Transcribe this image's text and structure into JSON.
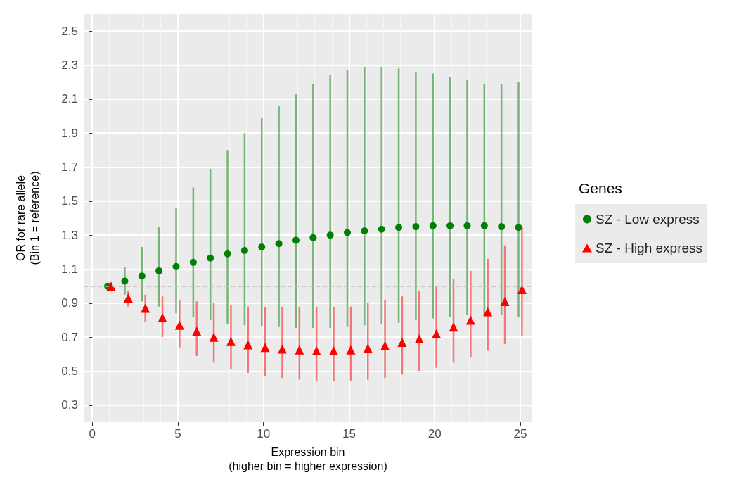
{
  "chart_data": {
    "type": "scatter",
    "xlabel": "Expression bin\n(higher bin = higher expression)",
    "ylabel": "OR for rare allele\n(Bin 1 = reference)",
    "legend_title": "Genes",
    "legend": "right",
    "grid": true,
    "xlim": [
      -0.5,
      25.7
    ],
    "xticks": [
      0,
      5,
      10,
      15,
      20,
      25
    ],
    "ylim": [
      0.2,
      2.6
    ],
    "yticks": [
      0.3,
      0.5,
      0.7,
      0.9,
      1.1,
      1.3,
      1.5,
      1.7,
      1.9,
      2.1,
      2.3,
      2.5
    ],
    "ref_lines": [
      {
        "axis": "y",
        "value": 1.0,
        "label": null,
        "color": "#bdbdbd",
        "line_style": "dashed"
      }
    ],
    "series": [
      {
        "name": "SZ - Low express",
        "color": "#008000",
        "marker": "circle",
        "x": [
          0.9,
          1.9,
          2.9,
          3.9,
          4.9,
          5.9,
          6.9,
          7.9,
          8.9,
          9.9,
          10.9,
          11.9,
          12.9,
          13.9,
          14.9,
          15.9,
          16.9,
          17.9,
          18.9,
          19.9,
          20.9,
          21.9,
          22.9,
          23.9,
          24.9
        ],
        "values": [
          1.0,
          1.03,
          1.06,
          1.09,
          1.115,
          1.14,
          1.165,
          1.19,
          1.21,
          1.23,
          1.25,
          1.27,
          1.285,
          1.3,
          1.315,
          1.325,
          1.335,
          1.345,
          1.35,
          1.355,
          1.355,
          1.355,
          1.355,
          1.35,
          1.345
        ],
        "errors": [
          null,
          [
            0.95,
            1.11
          ],
          [
            0.91,
            1.23
          ],
          [
            0.88,
            1.35
          ],
          [
            0.84,
            1.46
          ],
          [
            0.82,
            1.58
          ],
          [
            0.8,
            1.69
          ],
          [
            0.78,
            1.8
          ],
          [
            0.77,
            1.9
          ],
          [
            0.765,
            1.99
          ],
          [
            0.76,
            2.06
          ],
          [
            0.755,
            2.13
          ],
          [
            0.755,
            2.19
          ],
          [
            0.755,
            2.24
          ],
          [
            0.76,
            2.27
          ],
          [
            0.77,
            2.29
          ],
          [
            0.78,
            2.29
          ],
          [
            0.785,
            2.28
          ],
          [
            0.8,
            2.26
          ],
          [
            0.81,
            2.25
          ],
          [
            0.82,
            2.23
          ],
          [
            0.83,
            2.21
          ],
          [
            0.83,
            2.19
          ],
          [
            0.83,
            2.19
          ],
          [
            0.82,
            2.2
          ]
        ]
      },
      {
        "name": "SZ - High express",
        "color": "#ff0000",
        "marker": "triangle",
        "x": [
          1.1,
          2.1,
          3.1,
          4.1,
          5.1,
          6.1,
          7.1,
          8.1,
          9.1,
          10.1,
          11.1,
          12.1,
          13.1,
          14.1,
          15.1,
          16.1,
          17.1,
          18.1,
          19.1,
          20.1,
          21.1,
          22.1,
          23.1,
          24.1,
          25.1
        ],
        "values": [
          1.0,
          0.93,
          0.87,
          0.815,
          0.77,
          0.735,
          0.7,
          0.675,
          0.655,
          0.64,
          0.63,
          0.625,
          0.62,
          0.62,
          0.625,
          0.635,
          0.65,
          0.67,
          0.69,
          0.72,
          0.76,
          0.8,
          0.85,
          0.91,
          0.98
        ],
        "errors": [
          null,
          [
            0.88,
            0.97
          ],
          [
            0.79,
            0.95
          ],
          [
            0.7,
            0.94
          ],
          [
            0.64,
            0.92
          ],
          [
            0.59,
            0.91
          ],
          [
            0.55,
            0.9
          ],
          [
            0.51,
            0.89
          ],
          [
            0.49,
            0.88
          ],
          [
            0.47,
            0.875
          ],
          [
            0.46,
            0.875
          ],
          [
            0.45,
            0.875
          ],
          [
            0.44,
            0.875
          ],
          [
            0.44,
            0.875
          ],
          [
            0.445,
            0.88
          ],
          [
            0.45,
            0.9
          ],
          [
            0.46,
            0.92
          ],
          [
            0.48,
            0.94
          ],
          [
            0.5,
            0.97
          ],
          [
            0.52,
            1.0
          ],
          [
            0.55,
            1.04
          ],
          [
            0.58,
            1.09
          ],
          [
            0.62,
            1.16
          ],
          [
            0.66,
            1.24
          ],
          [
            0.71,
            1.35
          ]
        ]
      }
    ]
  }
}
